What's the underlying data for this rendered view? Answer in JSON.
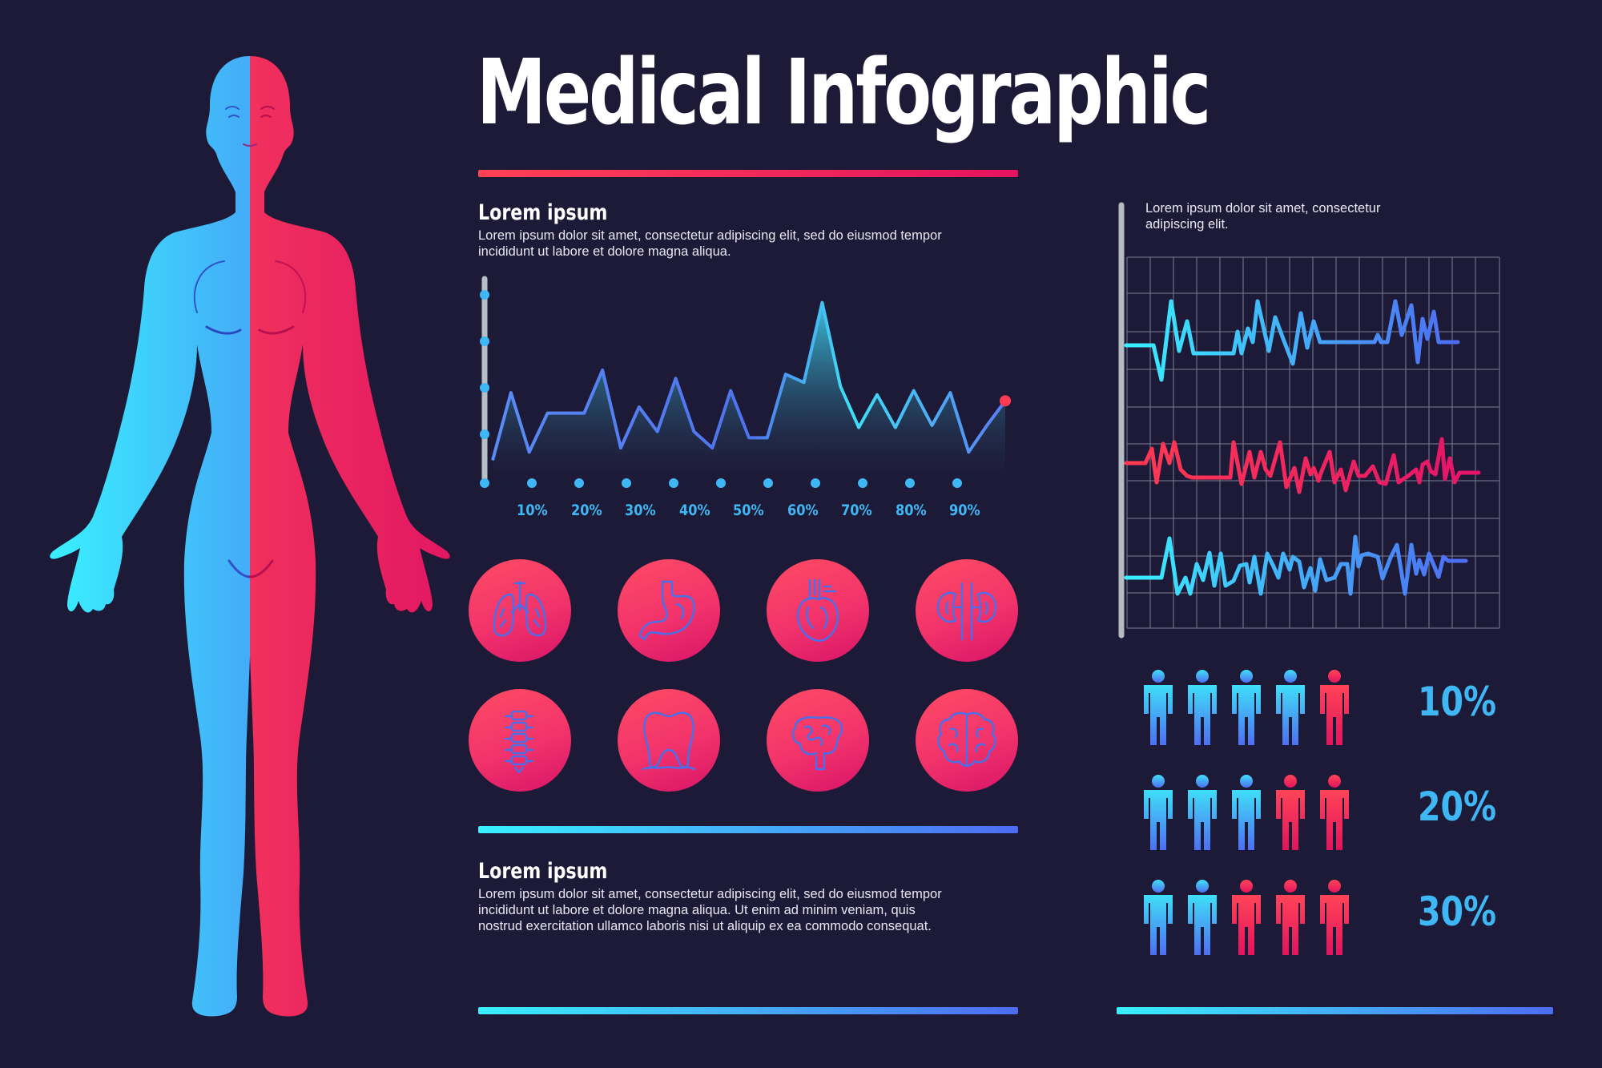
{
  "title": "Medical Infographic",
  "section1": {
    "heading": "Lorem ipsum",
    "text": "Lorem ipsum dolor sit amet, consectetur adipiscing elit, sed do eiusmod tempor incididunt ut labore et dolore magna aliqua."
  },
  "section2": {
    "heading": "Lorem ipsum",
    "text": "Lorem ipsum dolor sit amet, consectetur adipiscing elit, sed do eiusmod tempor incididunt ut labore et dolore magna aliqua. Ut enim ad minim veniam, quis nostrud exercitation ullamco laboris nisi ut aliquip ex ea commodo consequat."
  },
  "ecg_panel": {
    "text": "Lorem ipsum dolor sit amet, consectetur adipiscing elit."
  },
  "chart_data": {
    "type": "area",
    "x_tick_labels": [
      "10%",
      "20%",
      "30%",
      "40%",
      "50%",
      "60%",
      "70%",
      "80%",
      "90%"
    ],
    "values": [
      10,
      43,
      14,
      33,
      33,
      33,
      54,
      16,
      36,
      24,
      50,
      24,
      16,
      44,
      21,
      21,
      52,
      48,
      87,
      46,
      26,
      42,
      26,
      44,
      27,
      43,
      14,
      27,
      39
    ],
    "ylim": [
      0,
      90
    ]
  },
  "organ_icons": [
    "lungs-icon",
    "stomach-icon",
    "heart-icon",
    "kidneys-icon",
    "spine-icon",
    "tooth-icon",
    "intestines-icon",
    "brain-icon"
  ],
  "people_rows": [
    {
      "label": "10%",
      "highlighted": 1,
      "total": 5
    },
    {
      "label": "20%",
      "highlighted": 2,
      "total": 5
    },
    {
      "label": "30%",
      "highlighted": 3,
      "total": 5
    }
  ],
  "colors": {
    "background": "#1d1a37",
    "accent_red": "#f2365e",
    "accent_blue": "#3fb7f5",
    "accent_cyan": "#39f0ff"
  }
}
